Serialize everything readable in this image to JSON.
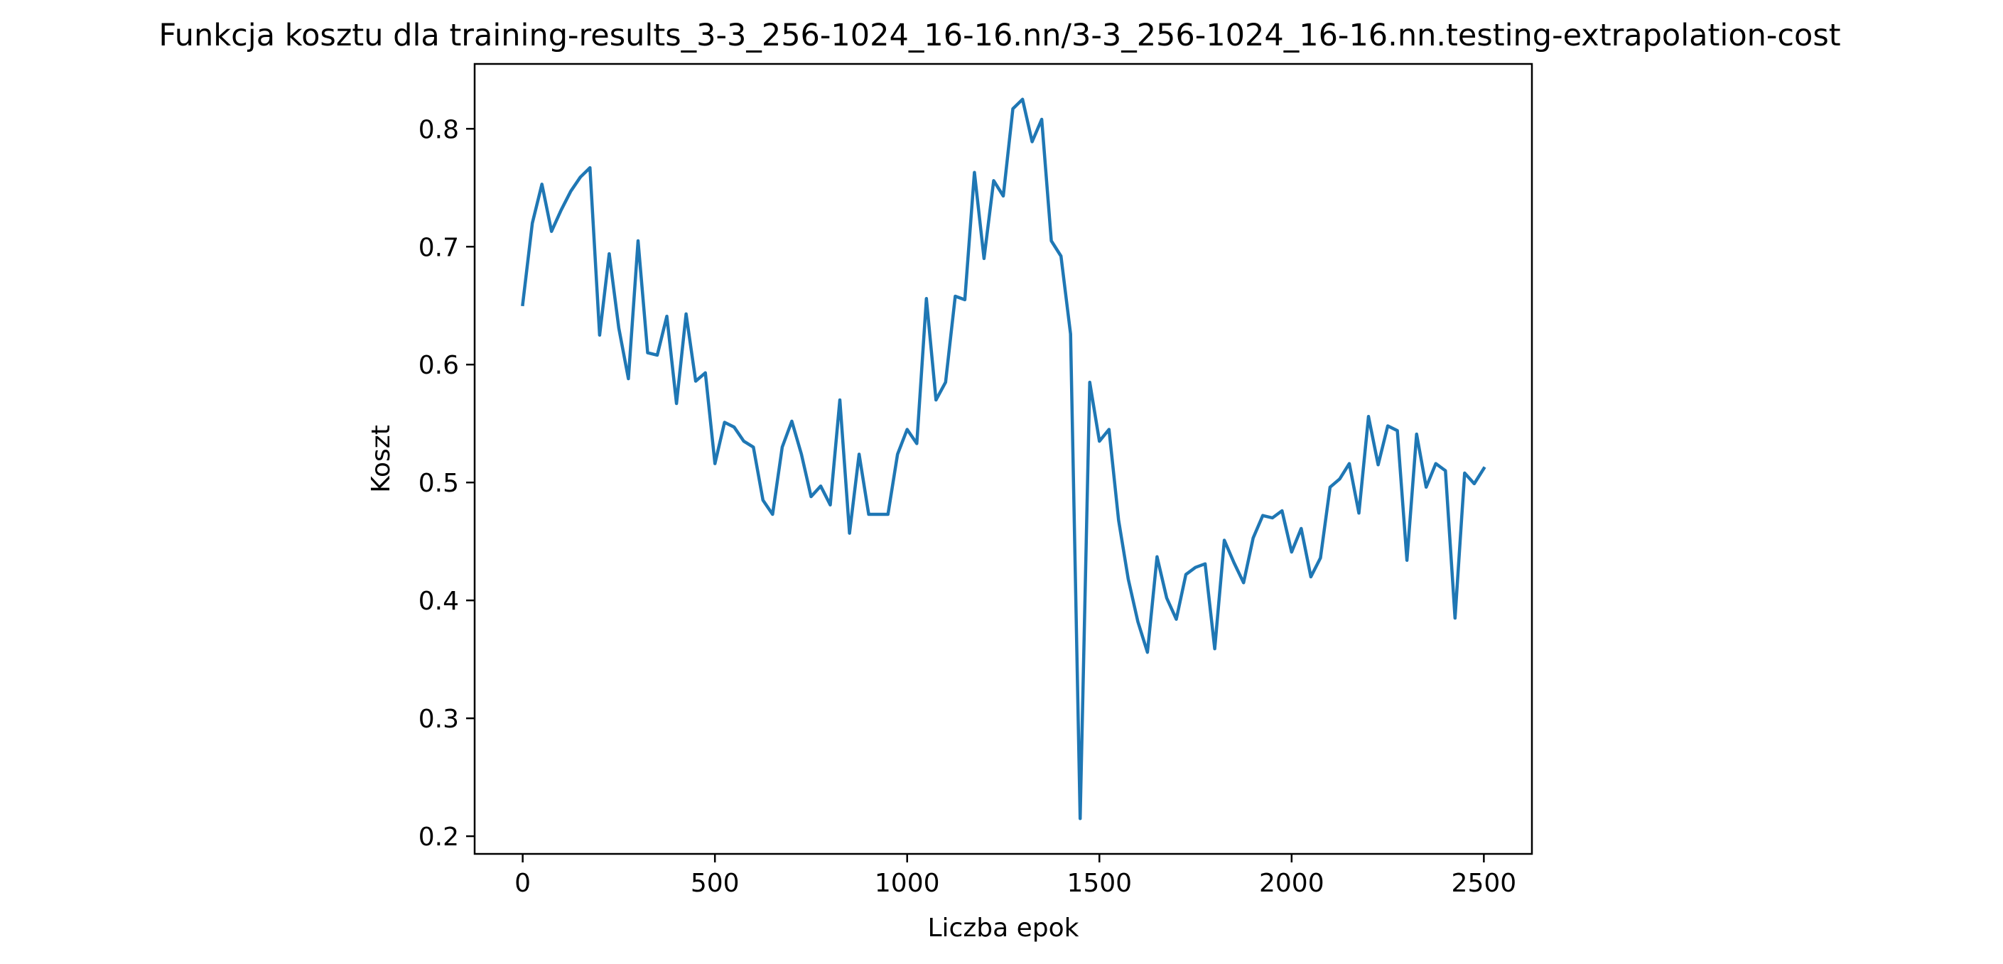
{
  "chart_data": {
    "type": "line",
    "title": "Funkcja kosztu dla training-results_3-3_256-1024_16-16.nn/3-3_256-1024_16-16.nn.testing-extrapolation-cost",
    "xlabel": "Liczba epok",
    "ylabel": "Koszt",
    "xlim": [
      -125,
      2625
    ],
    "ylim": [
      0.185,
      0.855
    ],
    "xticks": [
      0,
      500,
      1000,
      1500,
      2000,
      2500
    ],
    "yticks": [
      0.2,
      0.3,
      0.4,
      0.5,
      0.6,
      0.7,
      0.8
    ],
    "xtick_labels": [
      "0",
      "500",
      "1000",
      "1500",
      "2000",
      "2500"
    ],
    "ytick_labels": [
      "0.2",
      "0.3",
      "0.4",
      "0.5",
      "0.6",
      "0.7",
      "0.8"
    ],
    "grid": false,
    "line_color": "#1f77b4",
    "series": [
      {
        "x": [
          0,
          25,
          50,
          75,
          100,
          125,
          150,
          175,
          200,
          225,
          250,
          275,
          300,
          325,
          350,
          375,
          400,
          425,
          450,
          475,
          500,
          525,
          550,
          575,
          600,
          625,
          650,
          675,
          700,
          725,
          750,
          775,
          800,
          825,
          850,
          875,
          900,
          925,
          950,
          975,
          1000,
          1025,
          1050,
          1075,
          1100,
          1125,
          1150,
          1175,
          1200,
          1225,
          1250,
          1275,
          1300,
          1325,
          1350,
          1375,
          1400,
          1425,
          1450,
          1475,
          1500,
          1525,
          1550,
          1575,
          1600,
          1625,
          1650,
          1675,
          1700,
          1725,
          1750,
          1775,
          1800,
          1825,
          1850,
          1875,
          1900,
          1925,
          1950,
          1975,
          2000,
          2025,
          2050,
          2075,
          2100,
          2125,
          2150,
          2175,
          2200,
          2225,
          2250,
          2275,
          2300,
          2325,
          2350,
          2375,
          2400,
          2425,
          2450,
          2475,
          2500
        ],
        "values": [
          0.651,
          0.72,
          0.753,
          0.713,
          0.731,
          0.747,
          0.759,
          0.767,
          0.625,
          0.694,
          0.631,
          0.588,
          0.705,
          0.61,
          0.608,
          0.641,
          0.567,
          0.643,
          0.586,
          0.593,
          0.516,
          0.551,
          0.547,
          0.535,
          0.53,
          0.485,
          0.473,
          0.53,
          0.552,
          0.524,
          0.488,
          0.497,
          0.481,
          0.57,
          0.457,
          0.524,
          0.473,
          0.473,
          0.473,
          0.524,
          0.545,
          0.533,
          0.656,
          0.57,
          0.585,
          0.658,
          0.655,
          0.763,
          0.69,
          0.756,
          0.743,
          0.817,
          0.825,
          0.789,
          0.808,
          0.705,
          0.692,
          0.626,
          0.215,
          0.585,
          0.535,
          0.545,
          0.468,
          0.418,
          0.382,
          0.356,
          0.437,
          0.402,
          0.384,
          0.422,
          0.428,
          0.431,
          0.359,
          0.451,
          0.432,
          0.415,
          0.453,
          0.472,
          0.47,
          0.476,
          0.441,
          0.461,
          0.42,
          0.436,
          0.496,
          0.503,
          0.516,
          0.474,
          0.556,
          0.515,
          0.548,
          0.544,
          0.434,
          0.541,
          0.496,
          0.516,
          0.51,
          0.385,
          0.508,
          0.499,
          0.512
        ]
      }
    ]
  }
}
